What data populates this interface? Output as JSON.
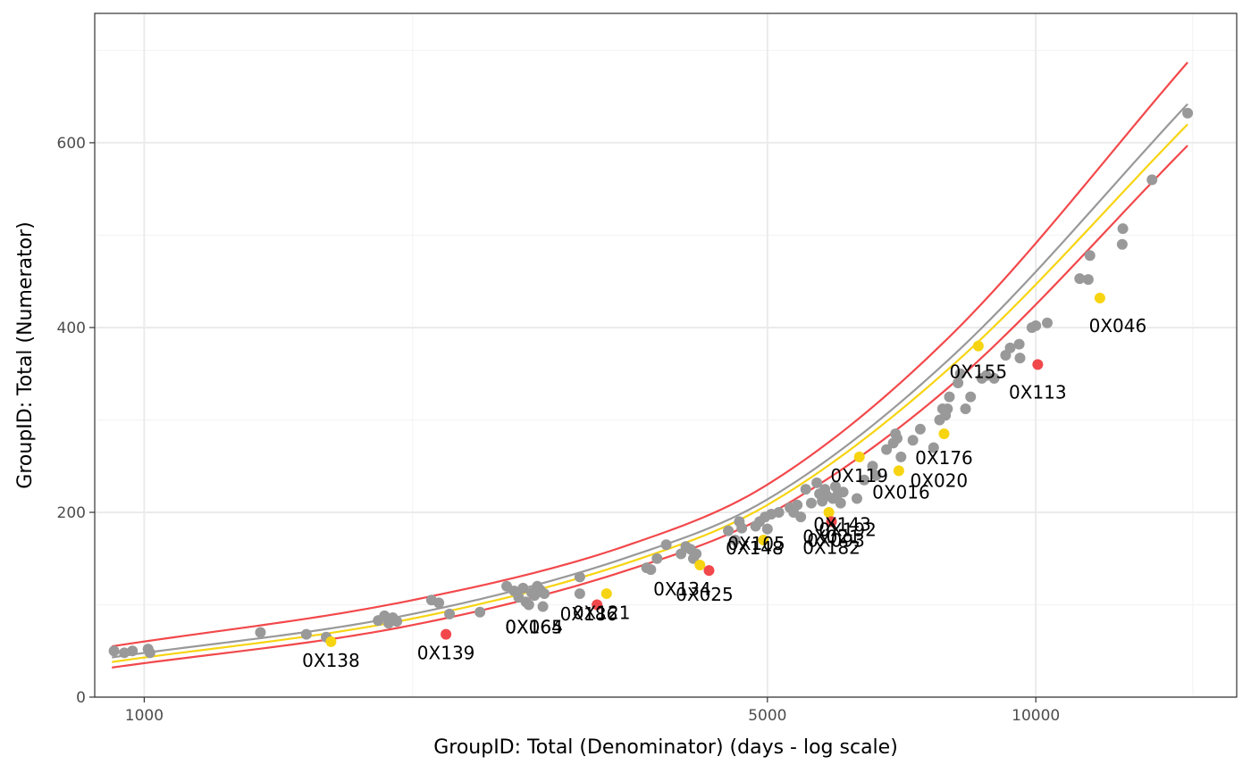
{
  "chart_data": {
    "type": "scatter",
    "title": "",
    "xlabel": "GroupID:  Total (Denominator) (days - log scale)",
    "ylabel": "GroupID:  Total (Numerator)",
    "x_scale": "log",
    "xlim": [
      880,
      16800
    ],
    "ylim": [
      0,
      740
    ],
    "x_ticks": [
      1000,
      5000,
      10000
    ],
    "x_tick_labels": [
      "1000",
      "5000",
      "10000"
    ],
    "y_ticks": [
      0,
      200,
      400,
      600
    ],
    "y_tick_labels": [
      "0",
      "200",
      "400",
      "600"
    ],
    "x_minor_ticks": [
      2000,
      15000
    ],
    "y_minor_ticks": [
      100,
      300,
      500,
      700
    ],
    "grid": true,
    "legend": "none",
    "colors": {
      "normal": "#999999",
      "warning": "#f7d411",
      "alarm": "#f2484b"
    },
    "curves": [
      {
        "name": "",
        "color": "#f2484b",
        "x": [
          920,
          2000,
          3500,
          5000,
          8000,
          14800
        ],
        "y": [
          55,
          105,
          165,
          230,
          390,
          687
        ]
      },
      {
        "name": "",
        "color": "#999999",
        "x": [
          920,
          2000,
          3500,
          5000,
          8000,
          14800
        ],
        "y": [
          43,
          90,
          152,
          214,
          366,
          642
        ]
      },
      {
        "name": "",
        "color": "#f7d411",
        "x": [
          920,
          2000,
          3500,
          5000,
          8000,
          14800
        ],
        "y": [
          38,
          85,
          146,
          208,
          356,
          620
        ]
      },
      {
        "name": "",
        "color": "#f2484b",
        "x": [
          920,
          2000,
          3500,
          5000,
          8000,
          14800
        ],
        "y": [
          32,
          78,
          138,
          197,
          336,
          597
        ]
      }
    ],
    "points": [
      {
        "x": 925,
        "y": 50,
        "status": "normal"
      },
      {
        "x": 950,
        "y": 48,
        "status": "normal"
      },
      {
        "x": 970,
        "y": 50,
        "status": "normal"
      },
      {
        "x": 1010,
        "y": 52,
        "status": "normal"
      },
      {
        "x": 1015,
        "y": 48,
        "status": "normal"
      },
      {
        "x": 1350,
        "y": 70,
        "status": "normal"
      },
      {
        "x": 1520,
        "y": 68,
        "status": "normal"
      },
      {
        "x": 1600,
        "y": 65,
        "status": "normal"
      },
      {
        "x": 1620,
        "y": 60,
        "status": "warning"
      },
      {
        "x": 1830,
        "y": 83,
        "status": "normal"
      },
      {
        "x": 1860,
        "y": 88,
        "status": "normal"
      },
      {
        "x": 1880,
        "y": 80,
        "status": "normal"
      },
      {
        "x": 1900,
        "y": 86,
        "status": "normal"
      },
      {
        "x": 1920,
        "y": 82,
        "status": "normal"
      },
      {
        "x": 2100,
        "y": 105,
        "status": "normal"
      },
      {
        "x": 2140,
        "y": 102,
        "status": "normal"
      },
      {
        "x": 2180,
        "y": 68,
        "status": "alarm"
      },
      {
        "x": 2200,
        "y": 90,
        "status": "normal"
      },
      {
        "x": 2380,
        "y": 92,
        "status": "normal"
      },
      {
        "x": 2550,
        "y": 120,
        "status": "normal"
      },
      {
        "x": 2600,
        "y": 115,
        "status": "normal"
      },
      {
        "x": 2630,
        "y": 108,
        "status": "normal"
      },
      {
        "x": 2660,
        "y": 118,
        "status": "normal"
      },
      {
        "x": 2680,
        "y": 103,
        "status": "normal"
      },
      {
        "x": 2700,
        "y": 100,
        "status": "normal"
      },
      {
        "x": 2720,
        "y": 113,
        "status": "normal"
      },
      {
        "x": 2740,
        "y": 110,
        "status": "normal"
      },
      {
        "x": 2760,
        "y": 120,
        "status": "normal"
      },
      {
        "x": 2780,
        "y": 116,
        "status": "normal"
      },
      {
        "x": 2800,
        "y": 98,
        "status": "normal"
      },
      {
        "x": 2810,
        "y": 112,
        "status": "normal"
      },
      {
        "x": 3080,
        "y": 130,
        "status": "normal"
      },
      {
        "x": 3080,
        "y": 112,
        "status": "normal"
      },
      {
        "x": 3220,
        "y": 100,
        "status": "alarm"
      },
      {
        "x": 3300,
        "y": 112,
        "status": "warning"
      },
      {
        "x": 3660,
        "y": 140,
        "status": "normal"
      },
      {
        "x": 3700,
        "y": 138,
        "status": "normal"
      },
      {
        "x": 3760,
        "y": 150,
        "status": "normal"
      },
      {
        "x": 3850,
        "y": 165,
        "status": "normal"
      },
      {
        "x": 4000,
        "y": 155,
        "status": "normal"
      },
      {
        "x": 4050,
        "y": 163,
        "status": "normal"
      },
      {
        "x": 4100,
        "y": 160,
        "status": "normal"
      },
      {
        "x": 4130,
        "y": 150,
        "status": "normal"
      },
      {
        "x": 4160,
        "y": 155,
        "status": "normal"
      },
      {
        "x": 4200,
        "y": 143,
        "status": "warning"
      },
      {
        "x": 4300,
        "y": 137,
        "status": "alarm"
      },
      {
        "x": 4520,
        "y": 180,
        "status": "normal"
      },
      {
        "x": 4600,
        "y": 170,
        "status": "normal"
      },
      {
        "x": 4650,
        "y": 190,
        "status": "normal"
      },
      {
        "x": 4680,
        "y": 183,
        "status": "normal"
      },
      {
        "x": 4850,
        "y": 185,
        "status": "normal"
      },
      {
        "x": 4900,
        "y": 190,
        "status": "normal"
      },
      {
        "x": 4950,
        "y": 170,
        "status": "warning"
      },
      {
        "x": 4970,
        "y": 195,
        "status": "normal"
      },
      {
        "x": 5000,
        "y": 182,
        "status": "normal"
      },
      {
        "x": 5050,
        "y": 198,
        "status": "normal"
      },
      {
        "x": 5150,
        "y": 200,
        "status": "normal"
      },
      {
        "x": 5300,
        "y": 205,
        "status": "normal"
      },
      {
        "x": 5350,
        "y": 200,
        "status": "normal"
      },
      {
        "x": 5400,
        "y": 208,
        "status": "normal"
      },
      {
        "x": 5450,
        "y": 195,
        "status": "normal"
      },
      {
        "x": 5520,
        "y": 225,
        "status": "normal"
      },
      {
        "x": 5600,
        "y": 210,
        "status": "normal"
      },
      {
        "x": 5680,
        "y": 232,
        "status": "normal"
      },
      {
        "x": 5720,
        "y": 220,
        "status": "normal"
      },
      {
        "x": 5760,
        "y": 212,
        "status": "normal"
      },
      {
        "x": 5800,
        "y": 225,
        "status": "normal"
      },
      {
        "x": 5830,
        "y": 218,
        "status": "normal"
      },
      {
        "x": 5860,
        "y": 200,
        "status": "warning"
      },
      {
        "x": 5900,
        "y": 190,
        "status": "alarm"
      },
      {
        "x": 5920,
        "y": 215,
        "status": "normal"
      },
      {
        "x": 5960,
        "y": 228,
        "status": "normal"
      },
      {
        "x": 6000,
        "y": 220,
        "status": "normal"
      },
      {
        "x": 6040,
        "y": 210,
        "status": "normal"
      },
      {
        "x": 6080,
        "y": 222,
        "status": "normal"
      },
      {
        "x": 6300,
        "y": 215,
        "status": "normal"
      },
      {
        "x": 6340,
        "y": 260,
        "status": "warning"
      },
      {
        "x": 6420,
        "y": 235,
        "status": "normal"
      },
      {
        "x": 6560,
        "y": 250,
        "status": "normal"
      },
      {
        "x": 6620,
        "y": 240,
        "status": "normal"
      },
      {
        "x": 6800,
        "y": 268,
        "status": "normal"
      },
      {
        "x": 6920,
        "y": 275,
        "status": "normal"
      },
      {
        "x": 6960,
        "y": 285,
        "status": "normal"
      },
      {
        "x": 6990,
        "y": 280,
        "status": "normal"
      },
      {
        "x": 7020,
        "y": 245,
        "status": "warning"
      },
      {
        "x": 7060,
        "y": 260,
        "status": "normal"
      },
      {
        "x": 7280,
        "y": 278,
        "status": "normal"
      },
      {
        "x": 7420,
        "y": 290,
        "status": "normal"
      },
      {
        "x": 7680,
        "y": 270,
        "status": "normal"
      },
      {
        "x": 7800,
        "y": 300,
        "status": "normal"
      },
      {
        "x": 7860,
        "y": 312,
        "status": "normal"
      },
      {
        "x": 7890,
        "y": 285,
        "status": "warning"
      },
      {
        "x": 7920,
        "y": 305,
        "status": "normal"
      },
      {
        "x": 7960,
        "y": 312,
        "status": "normal"
      },
      {
        "x": 8000,
        "y": 325,
        "status": "normal"
      },
      {
        "x": 8180,
        "y": 340,
        "status": "normal"
      },
      {
        "x": 8230,
        "y": 350,
        "status": "normal"
      },
      {
        "x": 8340,
        "y": 312,
        "status": "normal"
      },
      {
        "x": 8450,
        "y": 325,
        "status": "normal"
      },
      {
        "x": 8620,
        "y": 380,
        "status": "warning"
      },
      {
        "x": 8700,
        "y": 345,
        "status": "normal"
      },
      {
        "x": 8800,
        "y": 348,
        "status": "normal"
      },
      {
        "x": 8980,
        "y": 345,
        "status": "normal"
      },
      {
        "x": 9250,
        "y": 370,
        "status": "normal"
      },
      {
        "x": 9360,
        "y": 378,
        "status": "normal"
      },
      {
        "x": 9580,
        "y": 382,
        "status": "normal"
      },
      {
        "x": 9600,
        "y": 367,
        "status": "normal"
      },
      {
        "x": 9900,
        "y": 400,
        "status": "normal"
      },
      {
        "x": 10000,
        "y": 402,
        "status": "normal"
      },
      {
        "x": 10050,
        "y": 360,
        "status": "alarm"
      },
      {
        "x": 10300,
        "y": 405,
        "status": "normal"
      },
      {
        "x": 11200,
        "y": 453,
        "status": "normal"
      },
      {
        "x": 11450,
        "y": 452,
        "status": "normal"
      },
      {
        "x": 11500,
        "y": 478,
        "status": "normal"
      },
      {
        "x": 11800,
        "y": 432,
        "status": "warning"
      },
      {
        "x": 12500,
        "y": 490,
        "status": "normal"
      },
      {
        "x": 12520,
        "y": 507,
        "status": "normal"
      },
      {
        "x": 13500,
        "y": 560,
        "status": "normal"
      },
      {
        "x": 14800,
        "y": 632,
        "status": "normal"
      }
    ],
    "annotations": [
      {
        "text": "0X138",
        "x": 1620,
        "y": 60,
        "dx": 0,
        "dy": 12
      },
      {
        "text": "0X139",
        "x": 2180,
        "y": 68,
        "dx": 0,
        "dy": 12
      },
      {
        "text": "0X165",
        "x": 2800,
        "y": 98,
        "dx": -10,
        "dy": 14
      },
      {
        "text": "0X064",
        "x": 2800,
        "y": 98,
        "dx": -10,
        "dy": 14
      },
      {
        "text": "0X186",
        "x": 3080,
        "y": 112,
        "dx": 10,
        "dy": 14
      },
      {
        "text": "0X121",
        "x": 3220,
        "y": 100,
        "dx": 5,
        "dy": 0
      },
      {
        "text": "0X134",
        "x": 4300,
        "y": 137,
        "dx": -30,
        "dy": 12
      },
      {
        "text": "0X025",
        "x": 4300,
        "y": 137,
        "dx": -5,
        "dy": 18
      },
      {
        "text": "0X105",
        "x": 4950,
        "y": 170,
        "dx": -8,
        "dy": -5
      },
      {
        "text": "0X148",
        "x": 4950,
        "y": 170,
        "dx": -10,
        "dy": 0
      },
      {
        "text": "0X143",
        "x": 5900,
        "y": 190,
        "dx": 12,
        "dy": -6
      },
      {
        "text": "0X192",
        "x": 5900,
        "y": 190,
        "dx": 18,
        "dy": 0
      },
      {
        "text": "0X093",
        "x": 5900,
        "y": 190,
        "dx": 5,
        "dy": 12
      },
      {
        "text": "0X021",
        "x": 5900,
        "y": 190,
        "dx": 0,
        "dy": 8
      },
      {
        "text": "0X182",
        "x": 5900,
        "y": 190,
        "dx": 0,
        "dy": 20
      },
      {
        "text": "0X119",
        "x": 6340,
        "y": 260,
        "dx": 0,
        "dy": 12
      },
      {
        "text": "0X016",
        "x": 6620,
        "y": 240,
        "dx": 28,
        "dy": 10
      },
      {
        "text": "0X020",
        "x": 7020,
        "y": 245,
        "dx": 45,
        "dy": 2
      },
      {
        "text": "0X176",
        "x": 7890,
        "y": 285,
        "dx": 0,
        "dy": 18
      },
      {
        "text": "0X155",
        "x": 8620,
        "y": 380,
        "dx": 0,
        "dy": 20
      },
      {
        "text": "0X113",
        "x": 10050,
        "y": 360,
        "dx": 0,
        "dy": 22
      },
      {
        "text": "0X046",
        "x": 11800,
        "y": 432,
        "dx": 20,
        "dy": 22
      }
    ]
  }
}
